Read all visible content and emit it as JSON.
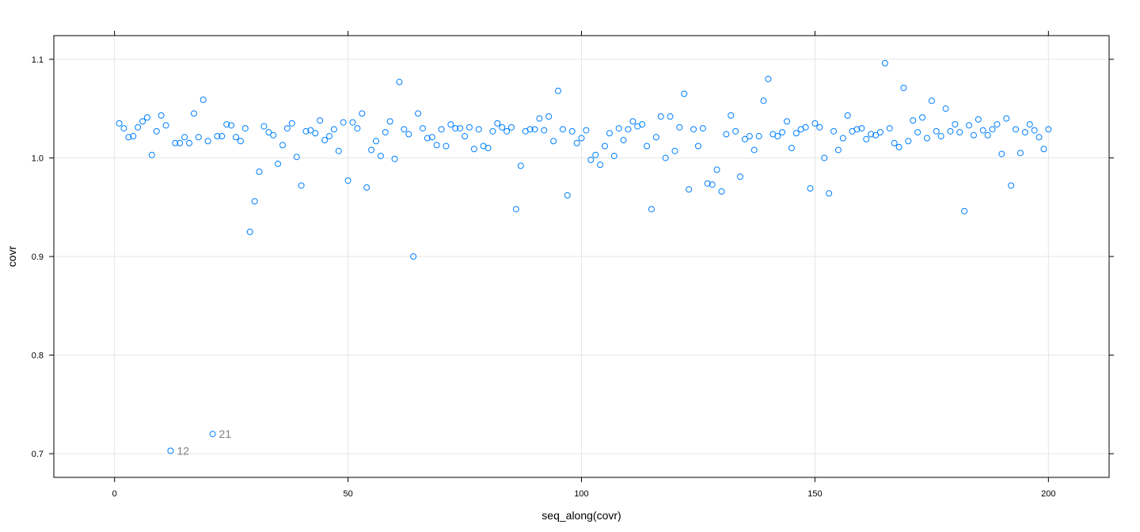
{
  "chart_data": {
    "type": "scatter",
    "title": "",
    "xlabel": "seq_along(covr)",
    "ylabel": "covr",
    "xlim": [
      -13,
      213
    ],
    "ylim": [
      0.676,
      1.124
    ],
    "xticks": [
      0,
      50,
      100,
      150,
      200
    ],
    "yticks": [
      0.7,
      0.8,
      0.9,
      1.0,
      1.1
    ],
    "xtick_labels": [
      "0",
      "50",
      "100",
      "150",
      "200"
    ],
    "ytick_labels": [
      "0.7",
      "0.8",
      "0.9",
      "1.0",
      "1.1"
    ],
    "grid": true,
    "point_color": "#0080ff",
    "label_color": "#808080",
    "x": [
      1,
      2,
      3,
      4,
      5,
      6,
      7,
      8,
      9,
      10,
      11,
      12,
      13,
      14,
      15,
      16,
      17,
      18,
      19,
      20,
      21,
      22,
      23,
      24,
      25,
      26,
      27,
      28,
      29,
      30,
      31,
      32,
      33,
      34,
      35,
      36,
      37,
      38,
      39,
      40,
      41,
      42,
      43,
      44,
      45,
      46,
      47,
      48,
      49,
      50,
      51,
      52,
      53,
      54,
      55,
      56,
      57,
      58,
      59,
      60,
      61,
      62,
      63,
      64,
      65,
      66,
      67,
      68,
      69,
      70,
      71,
      72,
      73,
      74,
      75,
      76,
      77,
      78,
      79,
      80,
      81,
      82,
      83,
      84,
      85,
      86,
      87,
      88,
      89,
      90,
      91,
      92,
      93,
      94,
      95,
      96,
      97,
      98,
      99,
      100,
      101,
      102,
      103,
      104,
      105,
      106,
      107,
      108,
      109,
      110,
      111,
      112,
      113,
      114,
      115,
      116,
      117,
      118,
      119,
      120,
      121,
      122,
      123,
      124,
      125,
      126,
      127,
      128,
      129,
      130,
      131,
      132,
      133,
      134,
      135,
      136,
      137,
      138,
      139,
      140,
      141,
      142,
      143,
      144,
      145,
      146,
      147,
      148,
      149,
      150,
      151,
      152,
      153,
      154,
      155,
      156,
      157,
      158,
      159,
      160,
      161,
      162,
      163,
      164,
      165,
      166,
      167,
      168,
      169,
      170,
      171,
      172,
      173,
      174,
      175,
      176,
      177,
      178,
      179,
      180,
      181,
      182,
      183,
      184,
      185,
      186,
      187,
      188,
      189,
      190,
      191,
      192,
      193,
      194,
      195,
      196,
      197,
      198,
      199,
      200
    ],
    "y": [
      1.035,
      1.03,
      1.021,
      1.022,
      1.031,
      1.037,
      1.041,
      1.003,
      1.027,
      1.043,
      1.033,
      0.703,
      1.015,
      1.015,
      1.021,
      1.015,
      1.045,
      1.021,
      1.059,
      1.017,
      0.72,
      1.022,
      1.022,
      1.034,
      1.033,
      1.021,
      1.017,
      1.03,
      0.925,
      0.956,
      0.986,
      1.032,
      1.026,
      1.023,
      0.994,
      1.013,
      1.03,
      1.035,
      1.001,
      0.972,
      1.027,
      1.028,
      1.025,
      1.038,
      1.018,
      1.022,
      1.029,
      1.007,
      1.036,
      0.977,
      1.036,
      1.03,
      1.045,
      0.97,
      1.008,
      1.017,
      1.002,
      1.026,
      1.037,
      0.999,
      1.077,
      1.029,
      1.024,
      0.9,
      1.045,
      1.03,
      1.02,
      1.021,
      1.013,
      1.029,
      1.012,
      1.034,
      1.03,
      1.03,
      1.022,
      1.031,
      1.009,
      1.029,
      1.012,
      1.01,
      1.027,
      1.035,
      1.031,
      1.027,
      1.031,
      0.948,
      0.992,
      1.027,
      1.029,
      1.029,
      1.04,
      1.028,
      1.042,
      1.017,
      1.068,
      1.029,
      0.962,
      1.027,
      1.015,
      1.02,
      1.028,
      0.998,
      1.003,
      0.993,
      1.012,
      1.025,
      1.002,
      1.03,
      1.018,
      1.029,
      1.037,
      1.032,
      1.034,
      1.012,
      0.948,
      1.021,
      1.042,
      1.0,
      1.042,
      1.007,
      1.031,
      1.065,
      0.968,
      1.029,
      1.012,
      1.03,
      0.974,
      0.973,
      0.988,
      0.966,
      1.024,
      1.043,
      1.027,
      0.981,
      1.019,
      1.022,
      1.008,
      1.022,
      1.058,
      1.08,
      1.024,
      1.022,
      1.026,
      1.037,
      1.01,
      1.025,
      1.029,
      1.031,
      0.969,
      1.035,
      1.031,
      1.0,
      0.964,
      1.027,
      1.008,
      1.02,
      1.043,
      1.027,
      1.029,
      1.03,
      1.019,
      1.024,
      1.023,
      1.026,
      1.096,
      1.03,
      1.015,
      1.011,
      1.071,
      1.017,
      1.038,
      1.026,
      1.041,
      1.02,
      1.058,
      1.027,
      1.022,
      1.05,
      1.027,
      1.034,
      1.026,
      0.946,
      1.033,
      1.023,
      1.039,
      1.028,
      1.023,
      1.029,
      1.034,
      1.004,
      1.04,
      0.972,
      1.029,
      1.005,
      1.026,
      1.034,
      1.028,
      1.021,
      1.009,
      1.029
    ],
    "annotations": [
      {
        "x": 12,
        "y": 0.703,
        "text": "12"
      },
      {
        "x": 21,
        "y": 0.72,
        "text": "21"
      }
    ]
  }
}
